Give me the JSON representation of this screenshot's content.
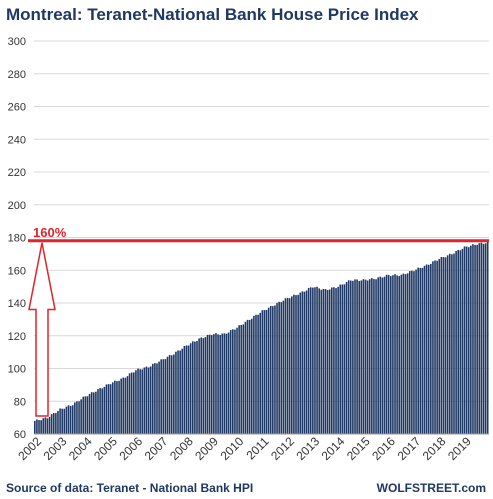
{
  "chart_data": {
    "type": "bar",
    "title": "Montreal: Teranet-National  Bank House Price Index",
    "source": "Source of data: Teranet - National Bank HPI",
    "brand": "WOLFSTREET.com",
    "annotation": "160%",
    "ylim": [
      60,
      300
    ],
    "yticks": [
      60,
      80,
      100,
      120,
      140,
      160,
      180,
      200,
      220,
      240,
      260,
      280,
      300
    ],
    "years": [
      "2002",
      "2003",
      "2004",
      "2005",
      "2006",
      "2007",
      "2008",
      "2009",
      "2010",
      "2011",
      "2012",
      "2013",
      "2014",
      "2015",
      "2016",
      "2017",
      "2018",
      "2019"
    ],
    "anchors": [
      {
        "year": 2002.0,
        "value": 68
      },
      {
        "year": 2002.5,
        "value": 70
      },
      {
        "year": 2003.0,
        "value": 75
      },
      {
        "year": 2003.5,
        "value": 78
      },
      {
        "year": 2004.0,
        "value": 83
      },
      {
        "year": 2004.5,
        "value": 87
      },
      {
        "year": 2005.0,
        "value": 91
      },
      {
        "year": 2005.5,
        "value": 94
      },
      {
        "year": 2006.0,
        "value": 99
      },
      {
        "year": 2006.5,
        "value": 101
      },
      {
        "year": 2007.0,
        "value": 105
      },
      {
        "year": 2007.5,
        "value": 109
      },
      {
        "year": 2008.0,
        "value": 114
      },
      {
        "year": 2008.5,
        "value": 118
      },
      {
        "year": 2009.0,
        "value": 121
      },
      {
        "year": 2009.5,
        "value": 121
      },
      {
        "year": 2010.0,
        "value": 125
      },
      {
        "year": 2010.5,
        "value": 130
      },
      {
        "year": 2011.0,
        "value": 135
      },
      {
        "year": 2011.5,
        "value": 139
      },
      {
        "year": 2012.0,
        "value": 143
      },
      {
        "year": 2012.5,
        "value": 146
      },
      {
        "year": 2013.0,
        "value": 150
      },
      {
        "year": 2013.5,
        "value": 148
      },
      {
        "year": 2014.0,
        "value": 150
      },
      {
        "year": 2014.5,
        "value": 154
      },
      {
        "year": 2015.0,
        "value": 154
      },
      {
        "year": 2015.5,
        "value": 155
      },
      {
        "year": 2016.0,
        "value": 157
      },
      {
        "year": 2016.5,
        "value": 157
      },
      {
        "year": 2017.0,
        "value": 160
      },
      {
        "year": 2017.5,
        "value": 163
      },
      {
        "year": 2018.0,
        "value": 167
      },
      {
        "year": 2018.5,
        "value": 170
      },
      {
        "year": 2019.0,
        "value": 174
      },
      {
        "year": 2019.5,
        "value": 176
      },
      {
        "year": 2019.92,
        "value": 177
      }
    ],
    "reference_value": 178,
    "start_value": 68,
    "colors": {
      "bars": "#1f3864",
      "reference_line": "#e0242b",
      "arrow": "#e0242b",
      "annotation": "#e0242b",
      "title": "#1f3864",
      "brand": "#1f3864",
      "source": "#1f3864",
      "grid": "#d9d9d9"
    }
  }
}
